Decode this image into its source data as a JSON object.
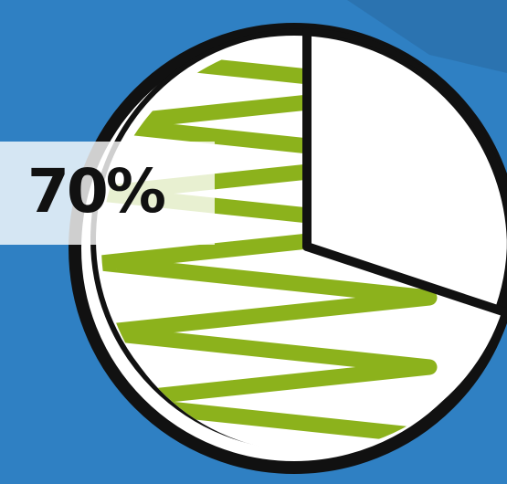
{
  "chart_data": {
    "type": "pie",
    "values": [
      70
    ],
    "value_labels": [
      "70%"
    ],
    "color": "#8cb21c"
  }
}
